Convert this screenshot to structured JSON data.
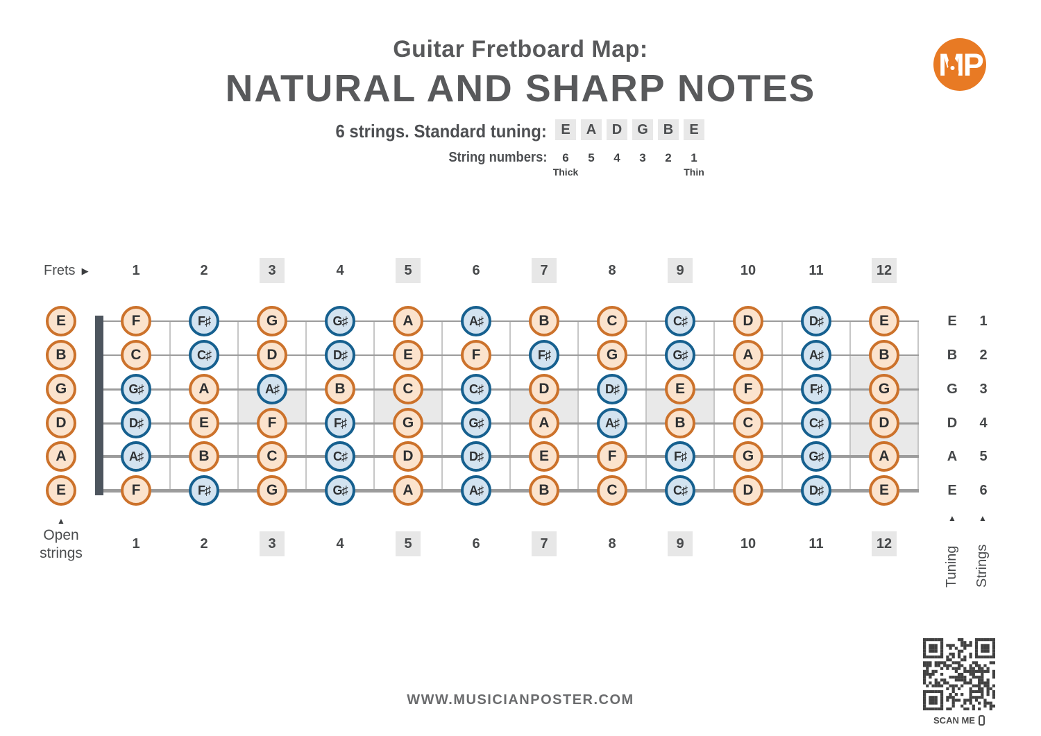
{
  "header": {
    "title_line1": "Guitar Fretboard Map:",
    "title_line2": "NATURAL AND SHARP NOTES",
    "subtitle": "6 strings. Standard tuning:",
    "tuning_letters": [
      "E",
      "A",
      "D",
      "G",
      "B",
      "E"
    ],
    "string_numbers_label": "String numbers:",
    "string_numbers": [
      "6",
      "5",
      "4",
      "3",
      "2",
      "1"
    ],
    "thick_label": "Thick",
    "thin_label": "Thin",
    "logo_text": "MP"
  },
  "fretboard": {
    "frets_label": "Frets",
    "fret_numbers": [
      1,
      2,
      3,
      4,
      5,
      6,
      7,
      8,
      9,
      10,
      11,
      12
    ],
    "marked_frets": [
      3,
      5,
      7,
      9,
      12
    ],
    "inlays": [
      {
        "fret": 3,
        "from_string": 3,
        "to_string": 4
      },
      {
        "fret": 5,
        "from_string": 3,
        "to_string": 4
      },
      {
        "fret": 7,
        "from_string": 3,
        "to_string": 4
      },
      {
        "fret": 9,
        "from_string": 3,
        "to_string": 4
      },
      {
        "fret": 12,
        "from_string": 2,
        "to_string": 5
      }
    ],
    "strings": [
      {
        "open": "E",
        "number": 1,
        "notes": [
          "F",
          "F#",
          "G",
          "G#",
          "A",
          "A#",
          "B",
          "C",
          "C#",
          "D",
          "D#",
          "E"
        ]
      },
      {
        "open": "B",
        "number": 2,
        "notes": [
          "C",
          "C#",
          "D",
          "D#",
          "E",
          "F",
          "F#",
          "G",
          "G#",
          "A",
          "A#",
          "B"
        ]
      },
      {
        "open": "G",
        "number": 3,
        "notes": [
          "G#",
          "A",
          "A#",
          "B",
          "C",
          "C#",
          "D",
          "D#",
          "E",
          "F",
          "F#",
          "G"
        ]
      },
      {
        "open": "D",
        "number": 4,
        "notes": [
          "D#",
          "E",
          "F",
          "F#",
          "G",
          "G#",
          "A",
          "A#",
          "B",
          "C",
          "C#",
          "D"
        ]
      },
      {
        "open": "A",
        "number": 5,
        "notes": [
          "A#",
          "B",
          "C",
          "C#",
          "D",
          "D#",
          "E",
          "F",
          "F#",
          "G",
          "G#",
          "A"
        ]
      },
      {
        "open": "E",
        "number": 6,
        "notes": [
          "F",
          "F#",
          "G",
          "G#",
          "A",
          "A#",
          "B",
          "C",
          "C#",
          "D",
          "D#",
          "E"
        ]
      }
    ],
    "open_strings_label": "Open strings",
    "tuning_label": "Tuning",
    "strings_label": "Strings"
  },
  "icons": {
    "up_arrow": "▲",
    "right_arrow": "▶"
  },
  "colors": {
    "natural_border": "#cc722b",
    "natural_fill": "#fbe3cd",
    "sharp_border": "#16608f",
    "sharp_fill": "#d3e3f0",
    "accent_orange": "#e87a24",
    "marker_gray": "#e9e9e9",
    "qr_dark": "#414141"
  },
  "footer": {
    "url": "WWW.MUSICIANPOSTER.COM",
    "scan_me_label": "SCAN ME"
  }
}
